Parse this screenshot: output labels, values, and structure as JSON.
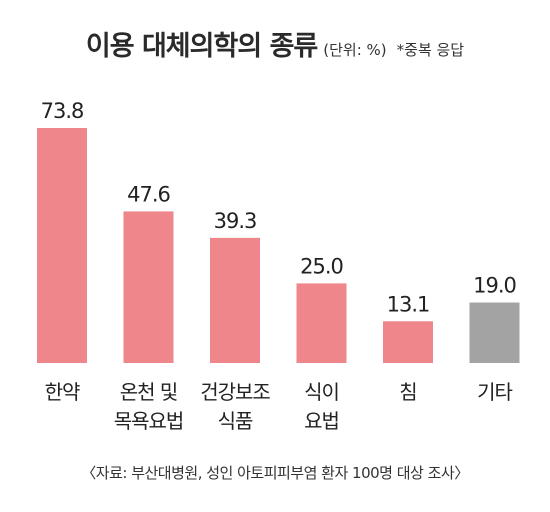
{
  "header": {
    "title": "이용 대체의학의 종류",
    "unit": "(단위: %)",
    "note": "*중복 응답"
  },
  "chart_data": {
    "type": "bar",
    "categories": [
      [
        "한약"
      ],
      [
        "온천 및",
        "목욕요법"
      ],
      [
        "건강보조",
        "식품"
      ],
      [
        "식이",
        "요법"
      ],
      [
        "침"
      ],
      [
        "기타"
      ]
    ],
    "values": [
      73.8,
      47.6,
      39.3,
      25.0,
      13.1,
      19.0
    ],
    "value_labels": [
      "73.8",
      "47.6",
      "39.3",
      "25.0",
      "13.1",
      "19.0"
    ],
    "colors": [
      "#ef868b",
      "#ef868b",
      "#ef868b",
      "#ef868b",
      "#ef868b",
      "#a3a3a3"
    ],
    "ylim": [
      0,
      80
    ],
    "grid": false,
    "legend": "none"
  },
  "source": "〈자료: 부산대병원, 성인 아토피피부염 환자 100명 대상 조사〉"
}
